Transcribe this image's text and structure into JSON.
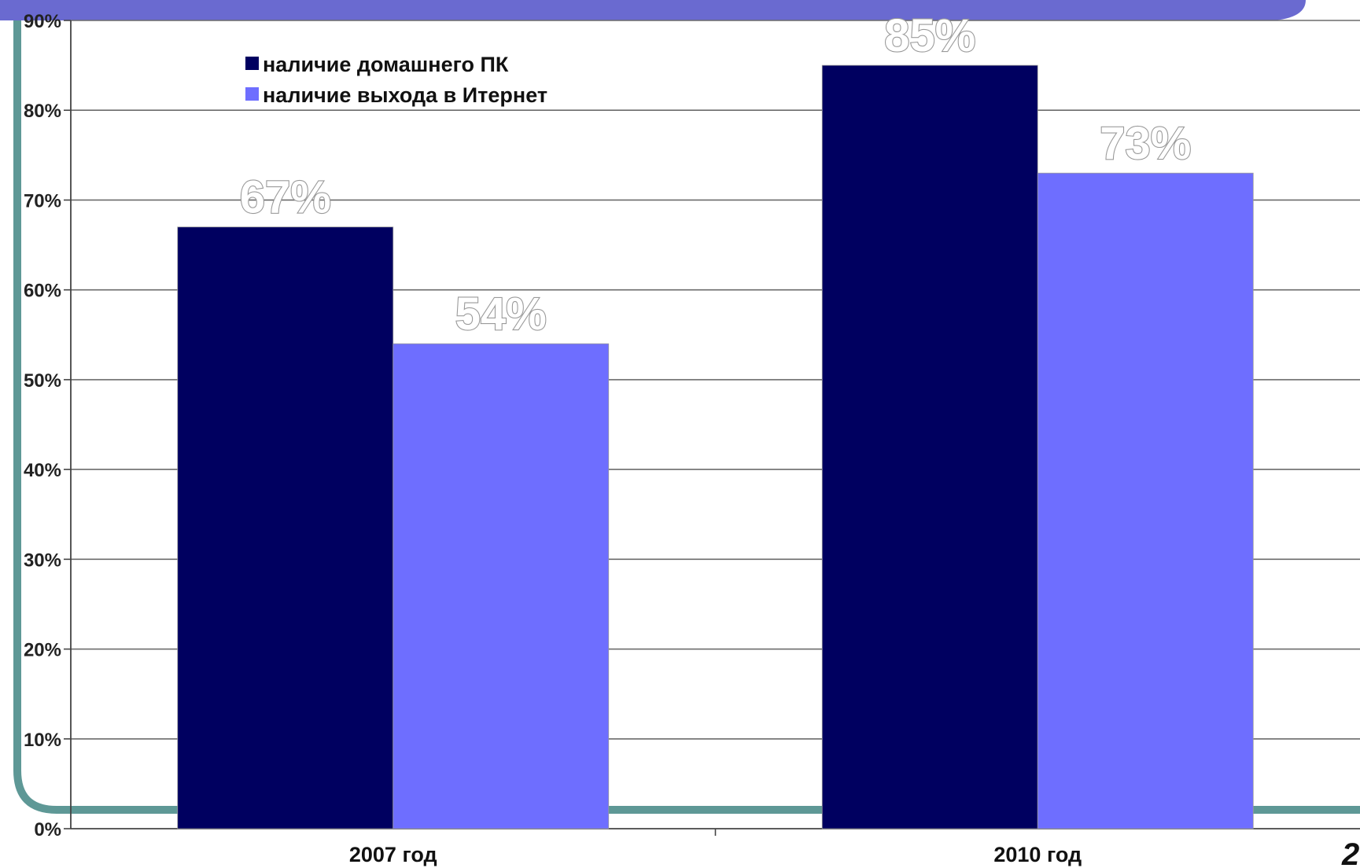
{
  "chart_data": {
    "type": "bar",
    "categories": [
      "2007 год",
      "2010 год"
    ],
    "series": [
      {
        "name": "наличие домашнего ПК",
        "color": "#000060",
        "values": [
          67,
          85
        ],
        "labels": [
          "67%",
          "85%"
        ]
      },
      {
        "name": "наличие выхода в Итернет",
        "color": "#6e6eff",
        "values": [
          54,
          73
        ],
        "labels": [
          "54%",
          "73%"
        ]
      }
    ],
    "ylim": [
      0,
      90
    ],
    "yticks": [
      0,
      10,
      20,
      30,
      40,
      50,
      60,
      70,
      80,
      90
    ],
    "ytick_labels": [
      "0%",
      "10%",
      "20%",
      "30%",
      "40%",
      "50%",
      "60%",
      "70%",
      "80%",
      "90%"
    ],
    "grid": true,
    "legend_position": "top-left",
    "title": "",
    "xlabel": "",
    "ylabel": ""
  },
  "page": {
    "number": "2",
    "frame_color": "#5e9896",
    "banner_color": "#6a6ad0"
  }
}
